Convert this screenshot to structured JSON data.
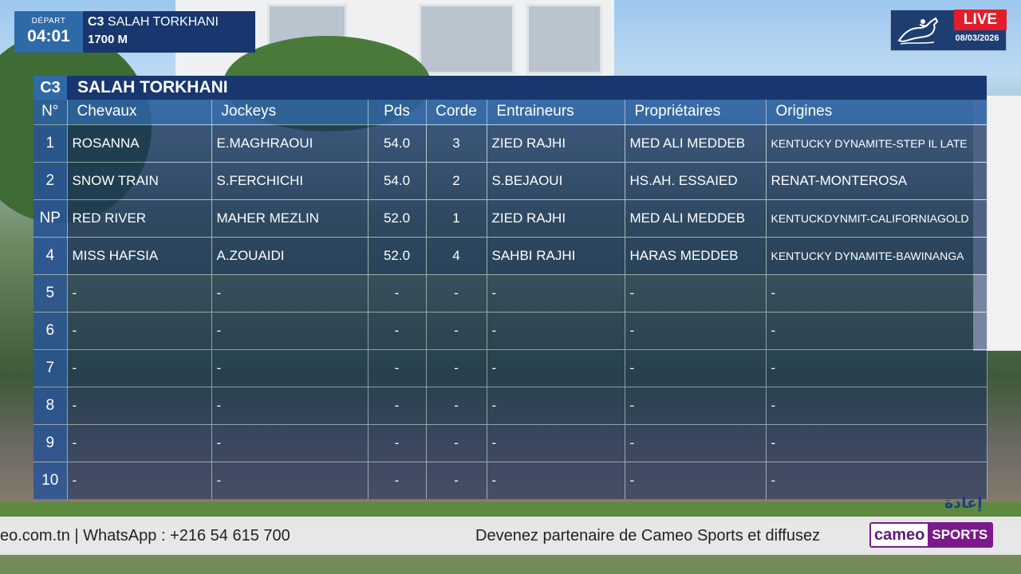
{
  "race": {
    "depart_label": "DÉPART",
    "depart_time": "04:01",
    "code": "C3",
    "name": "SALAH TORKHANI",
    "distance": "1700 M"
  },
  "broadcast": {
    "live_label": "LIVE",
    "date": "08/03/2026",
    "replay_label": "إعادة"
  },
  "table": {
    "code": "C3",
    "title": "SALAH TORKHANI",
    "columns": [
      "N°",
      "Chevaux",
      "Jockeys",
      "Pds",
      "Corde",
      "Entraineurs",
      "Propriétaires",
      "Origines"
    ],
    "rows": [
      [
        "1",
        "ROSANNA",
        "E.MAGHRAOUI",
        "54.0",
        "3",
        "ZIED RAJHI",
        "MED ALI MEDDEB",
        "KENTUCKY DYNAMITE-STEP IL LATE"
      ],
      [
        "2",
        "SNOW TRAIN",
        "S.FERCHICHI",
        "54.0",
        "2",
        "S.BEJAOUI",
        "HS.AH. ESSAIED",
        "RENAT-MONTEROSA"
      ],
      [
        "NP",
        "RED RIVER",
        "MAHER MEZLIN",
        "52.0",
        "1",
        "ZIED RAJHI",
        "MED ALI MEDDEB",
        "KENTUCKDYNMIT-CALIFORNIAGOLD"
      ],
      [
        "4",
        "MISS HAFSIA",
        "A.ZOUAIDI",
        "52.0",
        "4",
        "SAHBI RAJHI",
        "HARAS MEDDEB",
        "KENTUCKY DYNAMITE-BAWINANGA"
      ],
      [
        "5",
        "-",
        "-",
        "-",
        "-",
        "-",
        "-",
        "-"
      ],
      [
        "6",
        "-",
        "-",
        "-",
        "-",
        "-",
        "-",
        "-"
      ],
      [
        "7",
        "-",
        "-",
        "-",
        "-",
        "-",
        "-",
        "-"
      ],
      [
        "8",
        "-",
        "-",
        "-",
        "-",
        "-",
        "-",
        "-"
      ],
      [
        "9",
        "-",
        "-",
        "-",
        "-",
        "-",
        "-",
        "-"
      ],
      [
        "10",
        "-",
        "-",
        "-",
        "-",
        "-",
        "-",
        "-"
      ]
    ]
  },
  "ticker": {
    "left_text": "eo.com.tn | WhatsApp : +216 54 615 700",
    "right_text": "Devenez partenaire de Cameo Sports et diffusez",
    "brand_a": "cameo",
    "brand_b": "SPORTS"
  }
}
